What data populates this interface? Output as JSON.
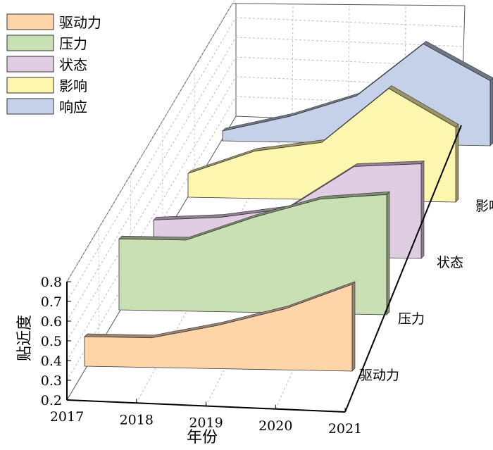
{
  "chart_data": {
    "type": "area",
    "title": "",
    "xlabel": "年份",
    "ylabel": "贴近度",
    "x": [
      "2017",
      "2018",
      "2019",
      "2020",
      "2021"
    ],
    "yticks": [
      "0.2",
      "0.3",
      "0.4",
      "0.5",
      "0.6",
      "0.7",
      "0.8"
    ],
    "ylim": [
      0.2,
      0.8
    ],
    "grid": true,
    "legend_position": "top-left",
    "series": [
      {
        "name": "驱动力",
        "color": "#fdd5a8",
        "edge": "#9c8470",
        "values": [
          0.35,
          0.35,
          0.42,
          0.51,
          0.64
        ]
      },
      {
        "name": "压力",
        "color": "#c9e0b4",
        "edge": "#7e8c70",
        "values": [
          0.56,
          0.56,
          0.68,
          0.78,
          0.81
        ]
      },
      {
        "name": "状态",
        "color": "#e0cce3",
        "edge": "#8f8092",
        "values": [
          0.37,
          0.39,
          0.44,
          0.66,
          0.68
        ]
      },
      {
        "name": "影响",
        "color": "#fdf6ae",
        "edge": "#9a9468",
        "values": [
          0.32,
          0.44,
          0.49,
          0.77,
          0.58
        ]
      },
      {
        "name": "响应",
        "color": "#c5d1e8",
        "edge": "#6f7686",
        "values": [
          0.25,
          0.33,
          0.44,
          0.71,
          0.53
        ]
      }
    ]
  }
}
